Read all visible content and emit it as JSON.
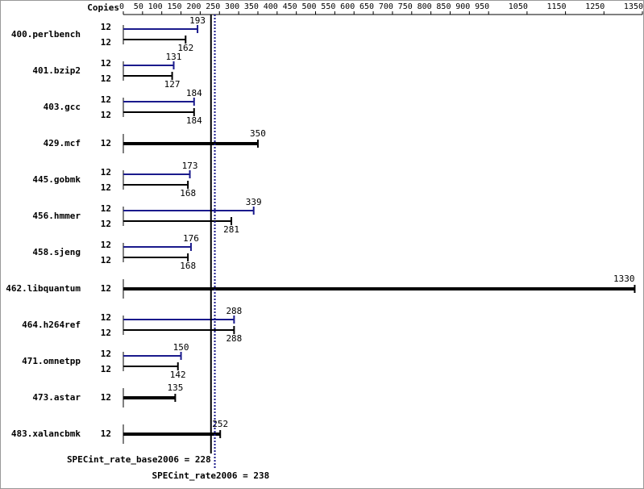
{
  "chart_data": {
    "type": "hbar",
    "copies_header": "Copies",
    "categories": [
      "400.perlbench",
      "401.bzip2",
      "403.gcc",
      "429.mcf",
      "445.gobmk",
      "456.hmmer",
      "458.sjeng",
      "462.libquantum",
      "464.h264ref",
      "471.omnetpp",
      "473.astar",
      "483.xalancbmk"
    ],
    "series": [
      {
        "color": "#1a1a8c",
        "copies": [
          12,
          12,
          12,
          null,
          12,
          12,
          12,
          null,
          12,
          12,
          null,
          null
        ],
        "values": [
          193,
          131,
          184,
          null,
          173,
          339,
          176,
          null,
          288,
          150,
          null,
          null
        ]
      },
      {
        "color": "#000000",
        "copies": [
          12,
          12,
          12,
          12,
          12,
          12,
          12,
          12,
          12,
          12,
          12,
          12
        ],
        "values": [
          162,
          127,
          184,
          350,
          168,
          281,
          168,
          1330,
          288,
          142,
          135,
          252
        ]
      }
    ],
    "xlim": [
      0,
      1350
    ],
    "xticks": [
      0,
      50,
      100,
      150,
      200,
      250,
      300,
      350,
      400,
      450,
      500,
      550,
      600,
      650,
      700,
      750,
      800,
      850,
      900,
      950,
      1050,
      1150,
      1250,
      1350
    ],
    "reference_lines": [
      {
        "value": 228,
        "label": "SPECint_rate_base2006 = 228",
        "color": "#000000",
        "dashed": false
      },
      {
        "value": 238,
        "label": "SPECint_rate2006 = 238",
        "color": "#1a1a8c",
        "dashed": true
      }
    ]
  }
}
